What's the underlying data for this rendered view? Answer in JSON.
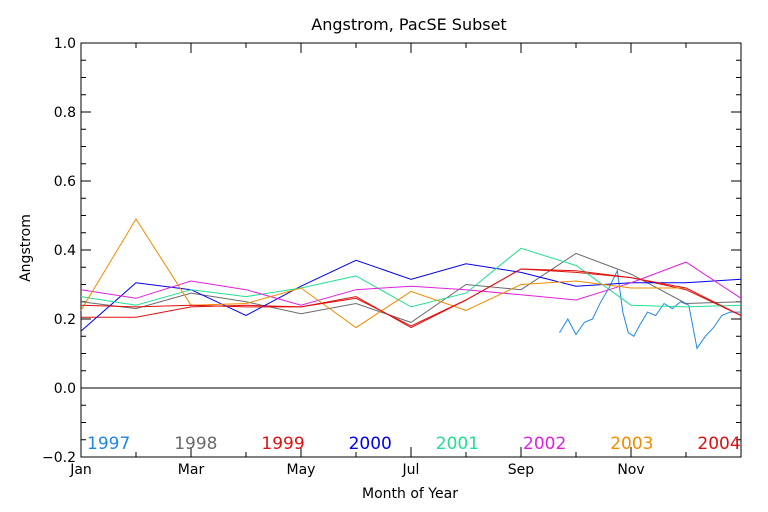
{
  "chart_data": {
    "type": "line",
    "title": "Angstrom, PacSE Subset",
    "xlabel": "Month of Year",
    "ylabel": "Angstrom",
    "xlim": [
      1,
      13
    ],
    "ylim": [
      -0.2,
      1.0
    ],
    "x_ticks": [
      {
        "value": 1,
        "label": "Jan"
      },
      {
        "value": 3,
        "label": "Mar"
      },
      {
        "value": 5,
        "label": "May"
      },
      {
        "value": 7,
        "label": "Jul"
      },
      {
        "value": 9,
        "label": "Sep"
      },
      {
        "value": 11,
        "label": "Nov"
      }
    ],
    "y_ticks": [
      {
        "value": -0.2,
        "label": "−0.2"
      },
      {
        "value": 0.0,
        "label": "0.0"
      },
      {
        "value": 0.2,
        "label": "0.2"
      },
      {
        "value": 0.4,
        "label": "0.4"
      },
      {
        "value": 0.6,
        "label": "0.6"
      },
      {
        "value": 0.8,
        "label": "0.8"
      },
      {
        "value": 1.0,
        "label": "1.0"
      }
    ],
    "zero_line": true,
    "grid": false,
    "legend_placement": "bottom inside plot",
    "series": [
      {
        "name": "1997",
        "color": "#1e88e5",
        "x": [
          9.7,
          9.85,
          10.0,
          10.15,
          10.3,
          10.45,
          10.6,
          10.75,
          10.85,
          10.95,
          11.05,
          11.15,
          11.3,
          11.45,
          11.6,
          11.75,
          11.9,
          12.05,
          12.2,
          12.35,
          12.5,
          12.65,
          12.8,
          12.95,
          13.0
        ],
        "y": [
          0.16,
          0.2,
          0.155,
          0.19,
          0.2,
          0.25,
          0.29,
          0.34,
          0.22,
          0.16,
          0.15,
          0.18,
          0.22,
          0.21,
          0.245,
          0.23,
          0.25,
          0.24,
          0.115,
          0.15,
          0.175,
          0.21,
          0.22,
          0.22,
          0.22
        ]
      },
      {
        "name": "1998",
        "color": "#6b6b6b",
        "x": [
          1,
          2,
          3,
          4,
          5,
          6,
          7,
          8,
          9,
          10,
          11,
          12,
          13
        ],
        "y": [
          0.25,
          0.23,
          0.275,
          0.25,
          0.215,
          0.245,
          0.19,
          0.3,
          0.285,
          0.39,
          0.33,
          0.245,
          0.25
        ]
      },
      {
        "name": "1999",
        "color": "#e01010",
        "x": [
          1,
          2,
          3,
          4,
          5,
          6,
          7,
          8,
          9,
          10,
          11,
          12,
          13
        ],
        "y": [
          0.205,
          0.205,
          0.235,
          0.24,
          0.235,
          0.265,
          0.175,
          0.255,
          0.345,
          0.335,
          0.32,
          0.285,
          0.21
        ]
      },
      {
        "name": "2000",
        "color": "#0000ee",
        "x": [
          1,
          2,
          3,
          4,
          5,
          6,
          7,
          8,
          9,
          10,
          11,
          12,
          13
        ],
        "y": [
          0.165,
          0.305,
          0.285,
          0.21,
          0.295,
          0.37,
          0.315,
          0.36,
          0.335,
          0.295,
          0.305,
          0.305,
          0.315
        ]
      },
      {
        "name": "2001",
        "color": "#22e090",
        "x": [
          1,
          2,
          3,
          4,
          5,
          6,
          7,
          8,
          9,
          10,
          11,
          12,
          13
        ],
        "y": [
          0.265,
          0.24,
          0.285,
          0.265,
          0.29,
          0.325,
          0.235,
          0.275,
          0.405,
          0.355,
          0.24,
          0.235,
          0.24
        ]
      },
      {
        "name": "2002",
        "color": "#e020e0",
        "x": [
          1,
          2,
          3,
          4,
          5,
          6,
          7,
          8,
          9,
          10,
          11,
          12,
          13
        ],
        "y": [
          0.285,
          0.26,
          0.31,
          0.285,
          0.24,
          0.285,
          0.295,
          0.285,
          0.27,
          0.255,
          0.305,
          0.365,
          0.26
        ]
      },
      {
        "name": "2003",
        "color": "#f08c00",
        "x": [
          1,
          2,
          3,
          4,
          5,
          6,
          7,
          8,
          9,
          10,
          11,
          12
        ],
        "y": [
          0.225,
          0.49,
          0.24,
          0.245,
          0.29,
          0.175,
          0.28,
          0.225,
          0.3,
          0.31,
          0.29,
          0.29
        ]
      },
      {
        "name": "2004",
        "color": "#e01010",
        "x": [
          1,
          2,
          3,
          4,
          5,
          6,
          7,
          8,
          9,
          10,
          11,
          12,
          13
        ],
        "y": [
          0.24,
          0.235,
          0.24,
          0.235,
          0.235,
          0.26,
          0.18,
          0.255,
          0.345,
          0.34,
          0.32,
          0.29,
          0.21
        ]
      }
    ]
  }
}
